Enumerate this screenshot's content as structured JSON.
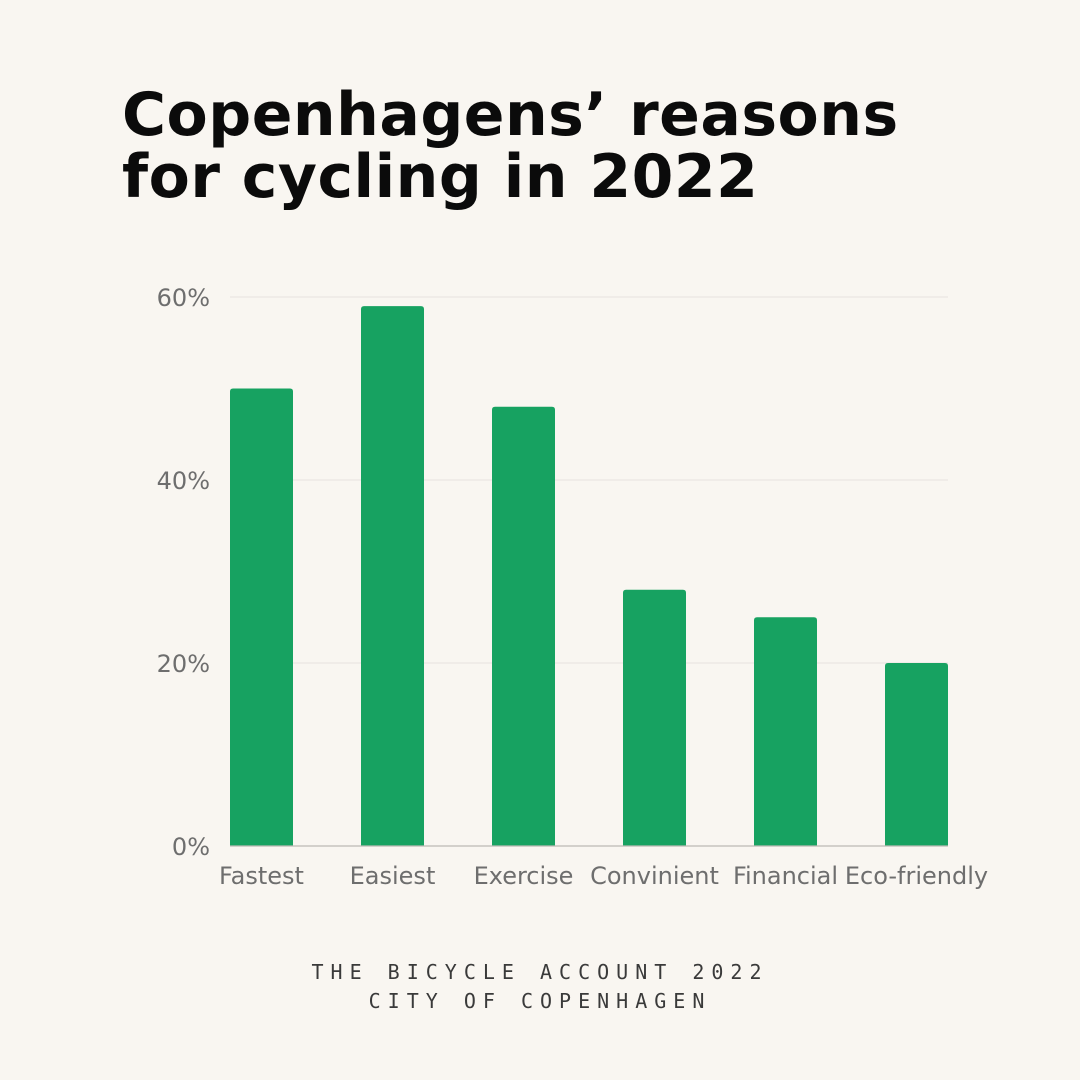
{
  "title_lines": [
    "Copenhagens’ reasons",
    "for cycling in 2022"
  ],
  "footer": {
    "line1": "THE BICYCLE ACCOUNT 2022",
    "line2": "CITY OF COPENHAGEN"
  },
  "colors": {
    "bar": "#17a261",
    "background": "#f9f6f1",
    "grid": "#e6e3de",
    "axis": "#bdbab5"
  },
  "chart_data": {
    "type": "bar",
    "title": "Copenhagens’ reasons for cycling in 2022",
    "categories": [
      "Fastest",
      "Easiest",
      "Exercise",
      "Convinient",
      "Financial",
      "Eco-friendly"
    ],
    "values": [
      50,
      59,
      48,
      28,
      25,
      20
    ],
    "ylim": [
      0,
      60
    ],
    "yticks": [
      0,
      20,
      40,
      60
    ],
    "ytick_labels": [
      "0%",
      "20%",
      "40%",
      "60%"
    ],
    "xlabel": "",
    "ylabel": "",
    "grid": true,
    "legend": false
  }
}
